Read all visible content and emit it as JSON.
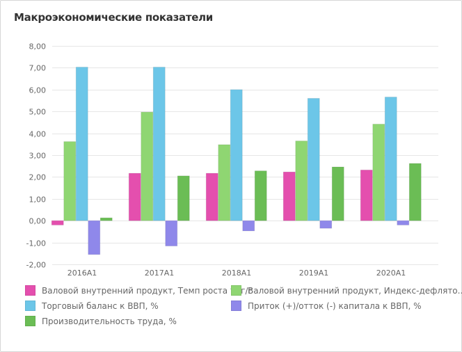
{
  "title": "Макроэкономические показатели",
  "chart_data": {
    "type": "bar",
    "title": "Макроэкономические показатели",
    "categories": [
      "2016A1",
      "2017A1",
      "2018A1",
      "2019A1",
      "2020A1"
    ],
    "ylim": [
      -2,
      8
    ],
    "yticks": [
      "-2,00",
      "-1,00",
      "0,00",
      "1,00",
      "2,00",
      "3,00",
      "4,00",
      "5,00",
      "6,00",
      "7,00",
      "8,00"
    ],
    "grid": true,
    "legend_position": "bottom",
    "series": [
      {
        "name": "Валовой внутренний продукт, Темп роста % г/г",
        "color": "#e44fae",
        "values": [
          -0.2,
          2.17,
          2.17,
          2.23,
          2.32
        ]
      },
      {
        "name": "Валовой внутренний продукт, Индекс-дефлято...",
        "color": "#8fd672",
        "values": [
          3.62,
          4.97,
          3.48,
          3.65,
          4.42
        ]
      },
      {
        "name": "Торговый баланс к ВВП, %",
        "color": "#6cc6e8",
        "values": [
          7.03,
          7.03,
          6.0,
          5.6,
          5.66
        ]
      },
      {
        "name": "Приток (+)/отток (-) капитала к ВВП, %",
        "color": "#8f88ea",
        "values": [
          -1.55,
          -1.16,
          -0.47,
          -0.35,
          -0.2
        ]
      },
      {
        "name": "Производительность труда, %",
        "color": "#6bbd55",
        "values": [
          0.13,
          2.05,
          2.28,
          2.46,
          2.62
        ]
      }
    ]
  }
}
